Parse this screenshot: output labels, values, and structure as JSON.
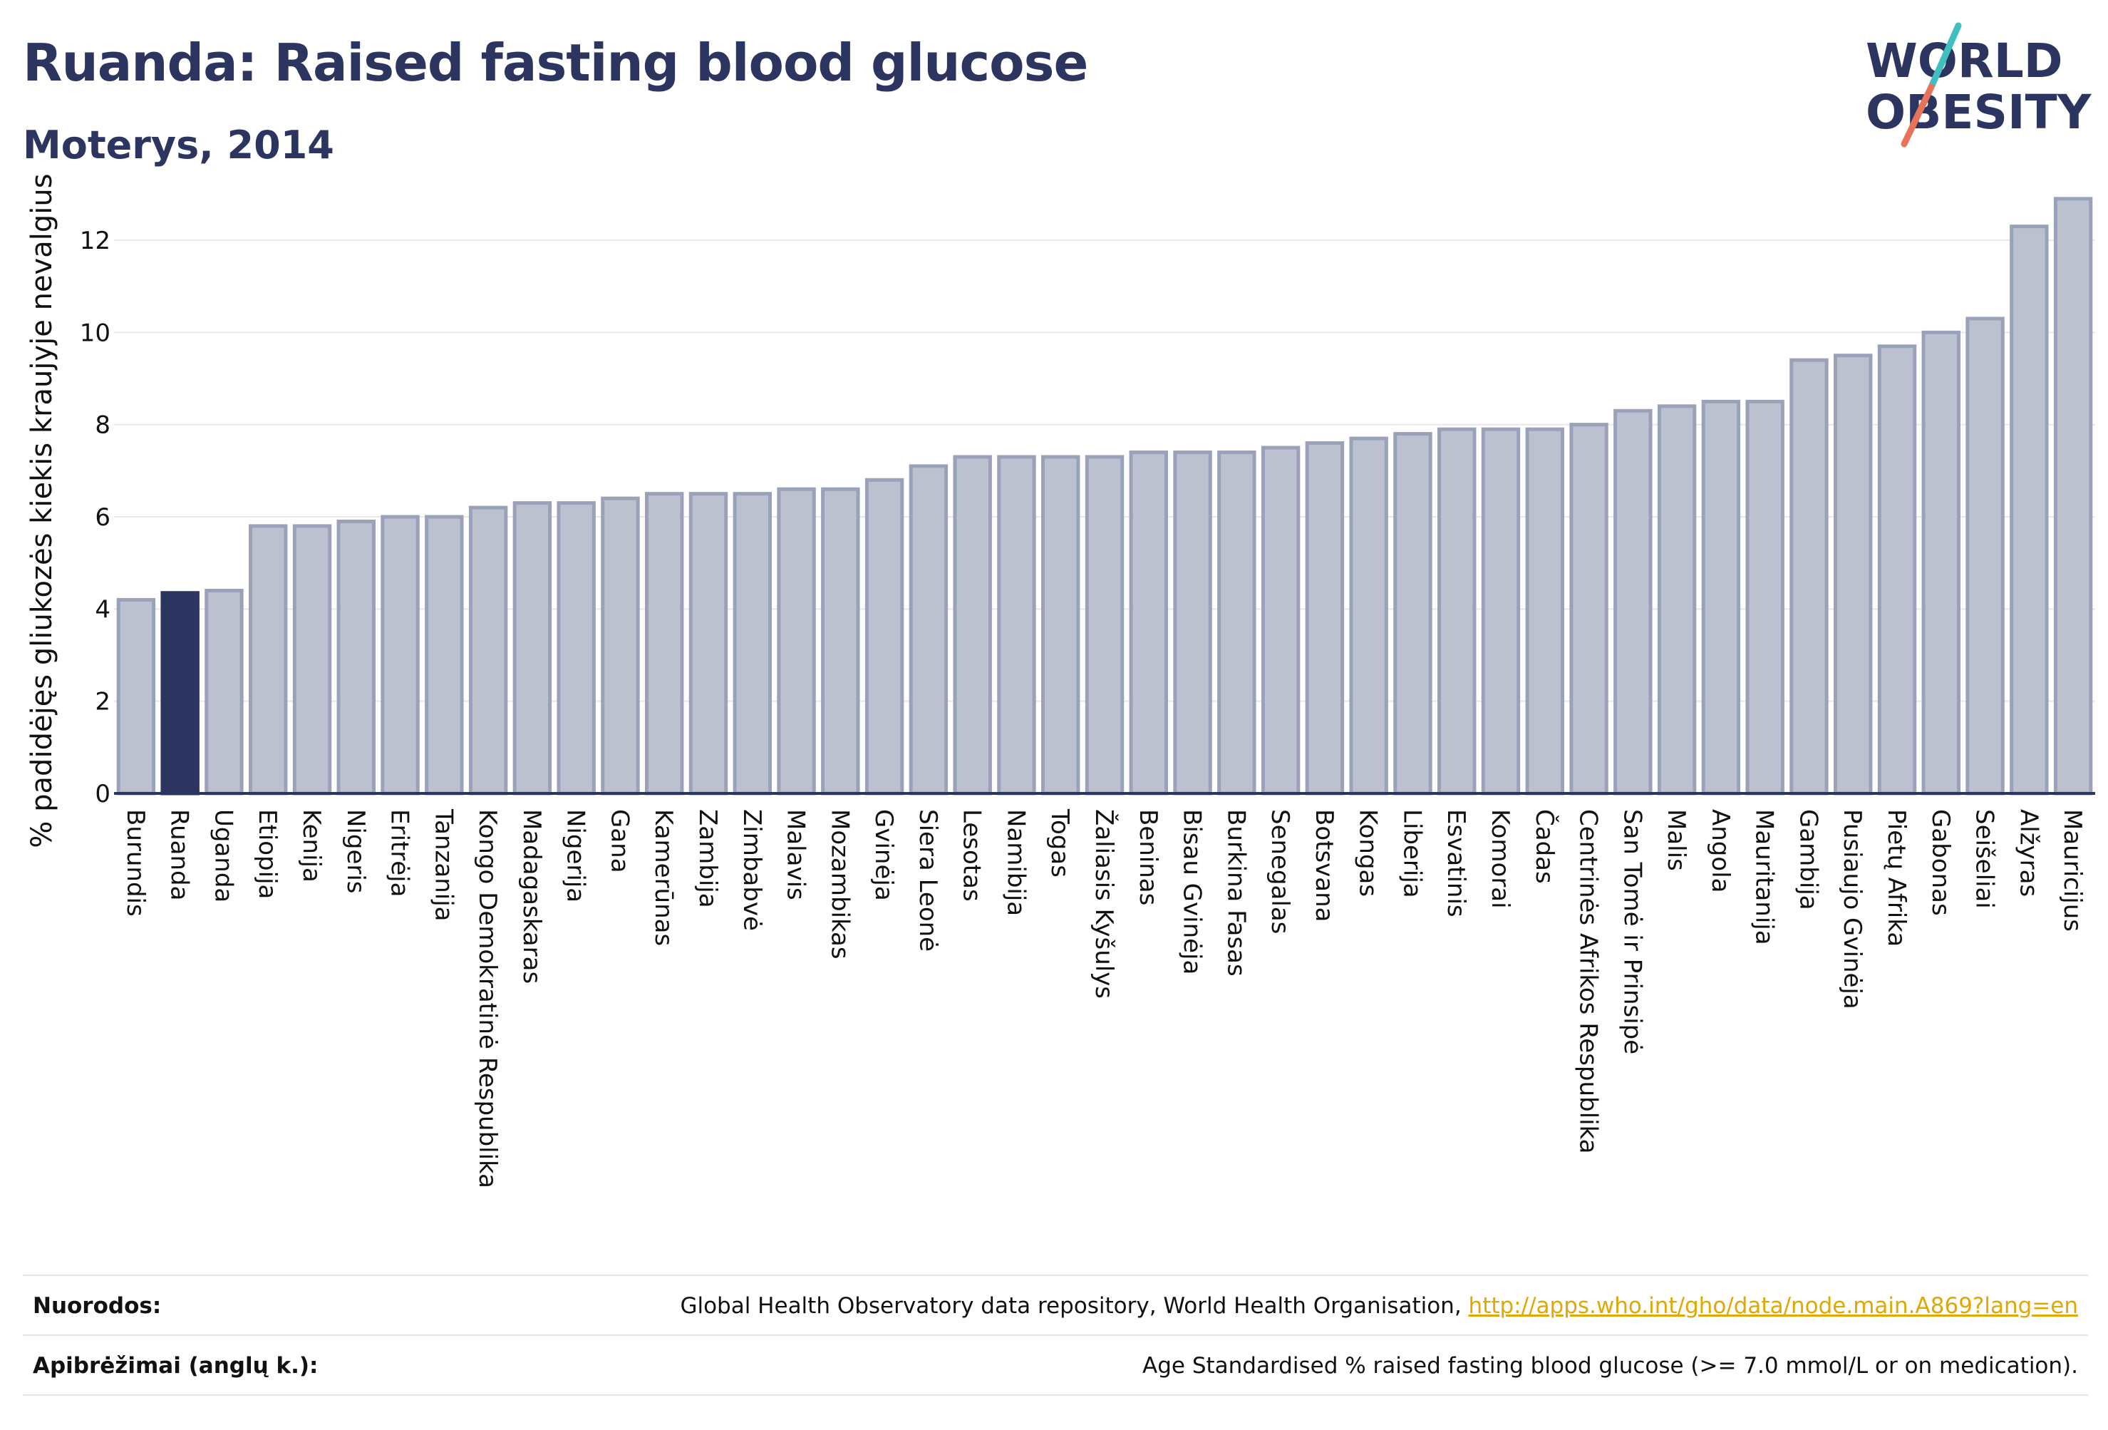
{
  "header": {
    "title": "Ruanda: Raised fasting blood glucose",
    "subtitle": "Moterys, 2014"
  },
  "logo": {
    "line1": "WORLD",
    "line2": "OBESITY",
    "icon": "world-obesity-logo"
  },
  "colors": {
    "bar": "#bcc1d0",
    "bar_border": "#9aa2ba",
    "highlight": "#2b3560",
    "gridline": "#e8e8e8",
    "link": "#e0a800"
  },
  "chart_data": {
    "type": "bar",
    "ylabel": "% padidėjęs gliukozės kiekis kraujyje nevalgius",
    "xlabel": "",
    "ylim": [
      0,
      13.5
    ],
    "yticks": [
      0,
      2,
      4,
      6,
      8,
      10,
      12
    ],
    "highlight": "Ruanda",
    "grid": true,
    "categories": [
      "Burundis",
      "Ruanda",
      "Uganda",
      "Etiopija",
      "Kenija",
      "Nigeris",
      "Eritrėja",
      "Tanzanija",
      "Kongo Demokratinė Respublika",
      "Madagaskaras",
      "Nigerija",
      "Gana",
      "Kamerūnas",
      "Zambija",
      "Zimbabvė",
      "Malavis",
      "Mozambikas",
      "Gvinėja",
      "Siera Leonė",
      "Lesotas",
      "Namibija",
      "Togas",
      "Žaliasis Kyšulys",
      "Beninas",
      "Bisau Gvinėja",
      "Burkina Fasas",
      "Senegalas",
      "Botsvana",
      "Kongas",
      "Liberija",
      "Esvatinis",
      "Komorai",
      "Čadas",
      "Centrinės Afrikos Respublika",
      "San Tomė ir Prinsipė",
      "Malis",
      "Angola",
      "Mauritanija",
      "Gambija",
      "Pusiaujo Gvinėja",
      "Pietų Afrika",
      "Gabonas",
      "Seišeliai",
      "Alžyras",
      "Mauricijus"
    ],
    "values": [
      4.2,
      4.35,
      4.4,
      5.8,
      5.8,
      5.9,
      6.0,
      6.0,
      6.2,
      6.3,
      6.3,
      6.4,
      6.5,
      6.5,
      6.5,
      6.6,
      6.6,
      6.8,
      7.1,
      7.3,
      7.3,
      7.3,
      7.3,
      7.4,
      7.4,
      7.4,
      7.5,
      7.6,
      7.7,
      7.8,
      7.9,
      7.9,
      7.9,
      8.0,
      8.3,
      8.4,
      8.5,
      8.5,
      9.4,
      9.5,
      9.7,
      10.0,
      10.3,
      12.3,
      12.9
    ]
  },
  "footer": {
    "sources_label": "Nuorodos:",
    "sources_text": "Global Health Observatory data repository, World Health Organisation, ",
    "sources_link": "http://apps.who.int/gho/data/node.main.A869?lang=en",
    "definitions_label": "Apibrėžimai (anglų k.):",
    "definitions_text": "Age Standardised % raised fasting blood glucose (>= 7.0 mmol/L or on medication)."
  }
}
